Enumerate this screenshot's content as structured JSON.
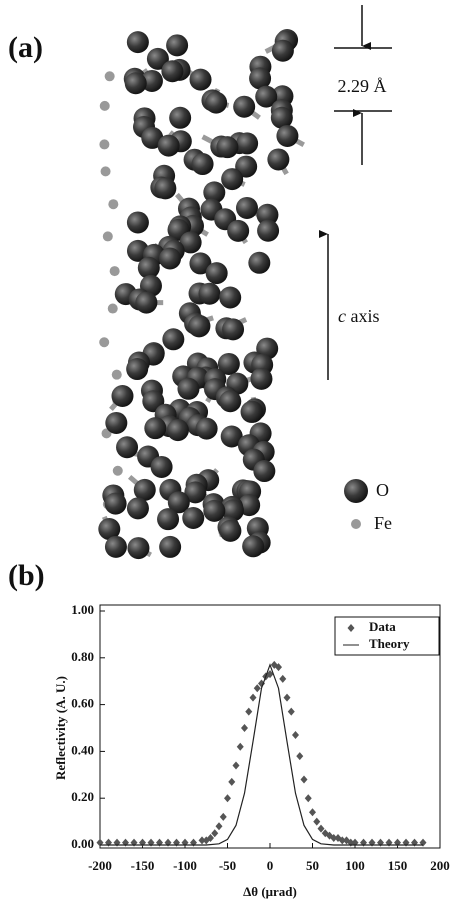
{
  "panel_a": {
    "label": "(a)",
    "spacing_label": "2.29 Å",
    "axis_symbol": "c",
    "axis_text": "axis",
    "legend": [
      "O",
      "Fe"
    ]
  },
  "panel_b": {
    "label": "(b)"
  },
  "chart_data": {
    "type": "scatter",
    "xlabel": "Δθ (μrad)",
    "ylabel": "Reflectivity (A. U.)",
    "xlim": [
      -200,
      200
    ],
    "ylim": [
      0,
      1
    ],
    "xticks": [
      -200,
      -150,
      -100,
      -50,
      0,
      50,
      100,
      150,
      200
    ],
    "yticks": [
      {
        "value": 0,
        "label": "0.00"
      },
      {
        "value": 0.2,
        "label": "0.20"
      },
      {
        "value": 0.4,
        "label": "0.40"
      },
      {
        "value": 0.6,
        "label": "0.60"
      },
      {
        "value": 0.8,
        "label": "0.80"
      },
      {
        "value": 1,
        "label": "1.00"
      }
    ],
    "legend": "upper right",
    "series": [
      {
        "name": "Data",
        "marker": "diamond",
        "color": "#555555",
        "x": [
          -200,
          -190,
          -180,
          -170,
          -160,
          -150,
          -140,
          -130,
          -120,
          -110,
          -100,
          -90,
          -80,
          -75,
          -70,
          -65,
          -60,
          -55,
          -50,
          -45,
          -40,
          -35,
          -30,
          -25,
          -20,
          -15,
          -10,
          -5,
          0,
          5,
          10,
          15,
          20,
          25,
          30,
          35,
          40,
          45,
          50,
          55,
          60,
          65,
          70,
          75,
          80,
          85,
          90,
          95,
          100,
          110,
          120,
          130,
          140,
          150,
          160,
          170,
          180
        ],
        "values": [
          0.01,
          0.01,
          0.01,
          0.01,
          0.01,
          0.01,
          0.01,
          0.01,
          0.01,
          0.01,
          0.01,
          0.01,
          0.02,
          0.02,
          0.03,
          0.05,
          0.08,
          0.12,
          0.2,
          0.27,
          0.34,
          0.42,
          0.5,
          0.57,
          0.63,
          0.67,
          0.69,
          0.72,
          0.73,
          0.77,
          0.76,
          0.71,
          0.63,
          0.57,
          0.47,
          0.38,
          0.28,
          0.2,
          0.14,
          0.1,
          0.07,
          0.05,
          0.04,
          0.03,
          0.03,
          0.02,
          0.02,
          0.01,
          0.01,
          0.01,
          0.01,
          0.01,
          0.01,
          0.01,
          0.01,
          0.01,
          0.01
        ]
      },
      {
        "name": "Theory",
        "color": "#222222",
        "x": [
          -200,
          -100,
          -75,
          -60,
          -50,
          -40,
          -30,
          -20,
          -10,
          0,
          10,
          20,
          30,
          40,
          50,
          60,
          75,
          100,
          180
        ],
        "values": [
          0,
          0,
          0,
          0.005,
          0.024,
          0.084,
          0.221,
          0.442,
          0.67,
          0.77,
          0.67,
          0.442,
          0.221,
          0.084,
          0.024,
          0.005,
          0,
          0,
          0
        ]
      }
    ]
  }
}
